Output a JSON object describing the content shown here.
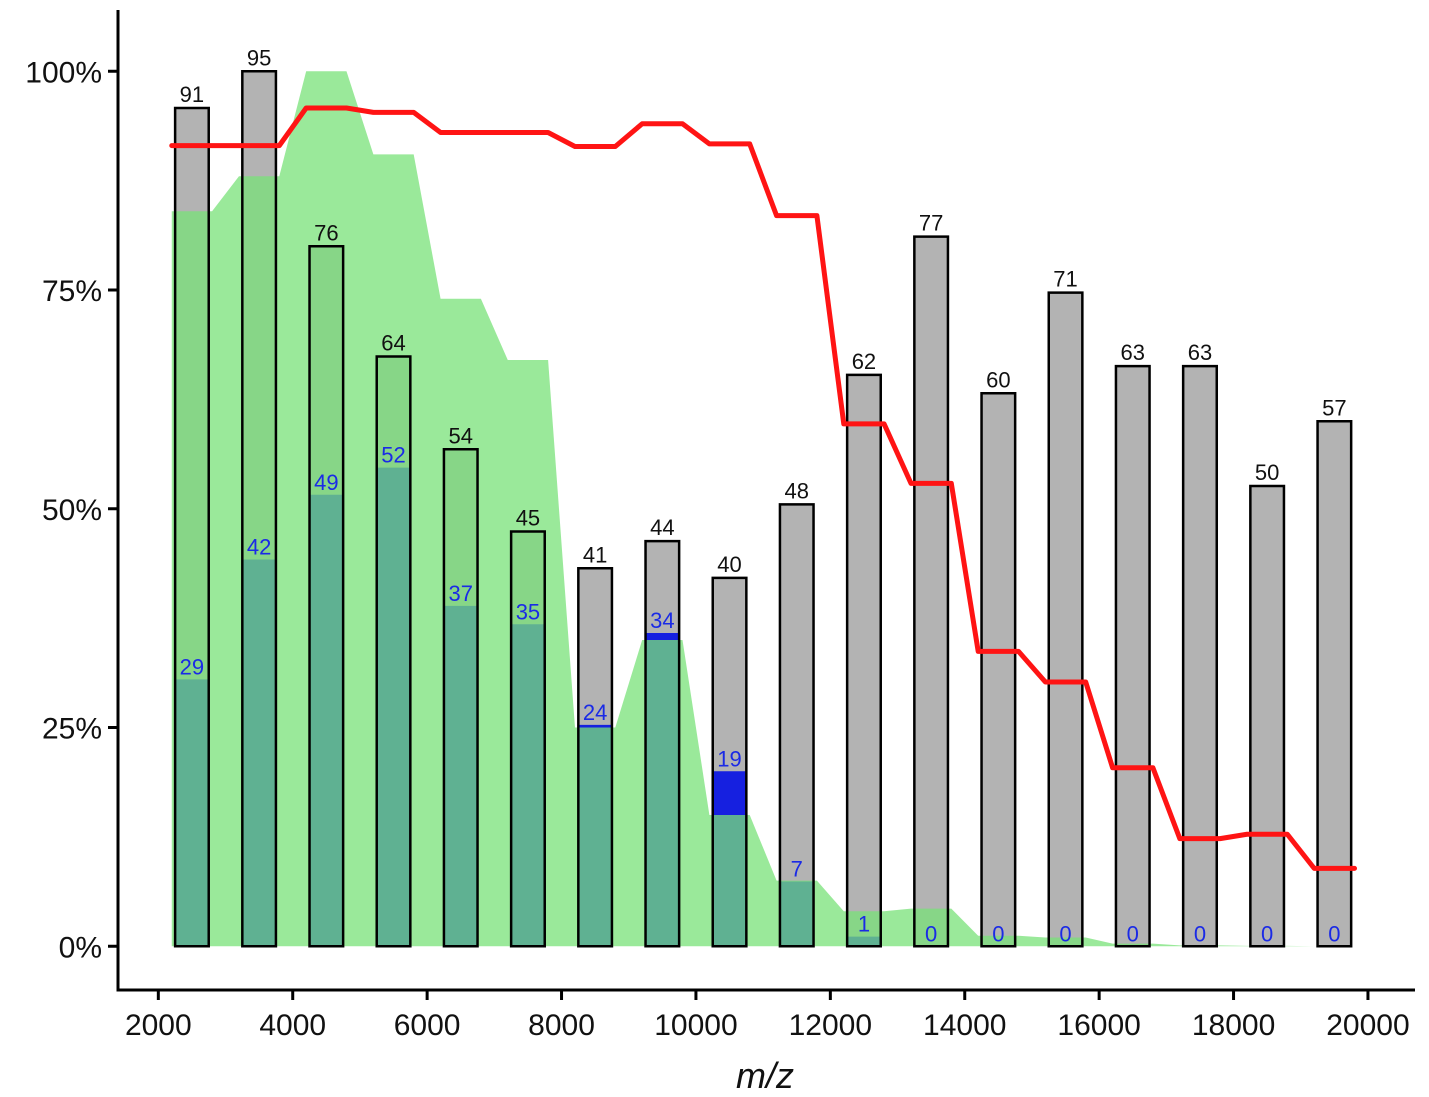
{
  "chart_data": {
    "type": "bar",
    "x": [
      2500,
      3500,
      4500,
      5500,
      6500,
      7500,
      8500,
      9500,
      10500,
      11500,
      12500,
      13500,
      14500,
      15500,
      16500,
      17500,
      18500,
      19500
    ],
    "bar_total_percent": [
      95.8,
      100,
      80,
      67.4,
      56.8,
      47.4,
      43.2,
      46.3,
      42.1,
      50.5,
      65.3,
      81.1,
      63.2,
      74.7,
      66.3,
      66.3,
      52.6,
      60
    ],
    "bar_total_labels": [
      "91",
      "95",
      "76",
      "64",
      "54",
      "45",
      "41",
      "44",
      "40",
      "48",
      "62",
      "77",
      "60",
      "71",
      "63",
      "63",
      "50",
      "57"
    ],
    "bar_matched_percent": [
      30.5,
      44.2,
      51.6,
      54.7,
      38.9,
      36.8,
      25.3,
      35.8,
      20,
      7.4,
      1.1,
      0,
      0,
      0,
      0,
      0,
      0,
      0
    ],
    "bar_matched_labels": [
      "29",
      "42",
      "49",
      "52",
      "37",
      "35",
      "24",
      "34",
      "19",
      "7",
      "1",
      "0",
      "0",
      "0",
      "0",
      "0",
      "0",
      "0"
    ],
    "area_x": [
      2200,
      2800,
      3200,
      3800,
      4200,
      4800,
      5200,
      5800,
      6200,
      6800,
      7200,
      7800,
      8200,
      8800,
      9200,
      9800,
      10200,
      10800,
      11200,
      11800,
      12200,
      12800,
      13200,
      13800,
      14200,
      14800,
      15200,
      15800,
      16200,
      16800,
      17200,
      17800,
      18200,
      18800,
      19200,
      19800
    ],
    "area_percent": [
      84,
      84,
      88,
      88,
      100,
      100,
      90.5,
      90.5,
      74,
      74,
      67,
      67,
      25,
      25,
      35,
      35,
      15,
      15,
      7.5,
      7.5,
      4,
      4,
      4.3,
      4.3,
      1.2,
      1.2,
      1,
      1,
      0.3,
      0.3,
      0.1,
      0.1,
      0.05,
      0.05,
      0,
      0
    ],
    "line_x": [
      2200,
      2800,
      3200,
      3800,
      4200,
      4800,
      5200,
      5800,
      6200,
      6800,
      7200,
      7800,
      8200,
      8800,
      9200,
      9800,
      10200,
      10800,
      11200,
      11800,
      12200,
      12800,
      13200,
      13800,
      14200,
      14800,
      15200,
      15800,
      16200,
      16800,
      17200,
      17800,
      18200,
      18800,
      19200,
      19800
    ],
    "line_percent": [
      91.5,
      91.5,
      91.5,
      91.5,
      95.8,
      95.8,
      95.3,
      95.3,
      93,
      93,
      93,
      93,
      91.4,
      91.4,
      94,
      94,
      91.7,
      91.7,
      83.5,
      83.5,
      59.7,
      59.7,
      52.9,
      52.9,
      33.7,
      33.7,
      30.2,
      30.2,
      20.4,
      20.4,
      12.3,
      12.3,
      12.8,
      12.8,
      8.9,
      8.9
    ],
    "xlabel": "m/z",
    "ylabel": "",
    "xlim": [
      1400,
      20700
    ],
    "ylim": [
      -5,
      107
    ],
    "xticks": [
      "2000",
      "4000",
      "6000",
      "8000",
      "10000",
      "12000",
      "14000",
      "16000",
      "18000",
      "20000"
    ],
    "xtick_values": [
      2000,
      4000,
      6000,
      8000,
      10000,
      12000,
      14000,
      16000,
      18000,
      20000
    ],
    "yticks": [
      "0%",
      "25%",
      "50%",
      "75%",
      "100%"
    ],
    "ytick_values": [
      0,
      25,
      50,
      75,
      100
    ],
    "grid": false,
    "legend": "none",
    "colors": {
      "bar_total": "#b3b3b3",
      "bar_matched": "#1620e0",
      "matched_label": "#1a2ae6",
      "area": "#78e178",
      "line": "#ff1414",
      "outline": "#000000"
    }
  }
}
